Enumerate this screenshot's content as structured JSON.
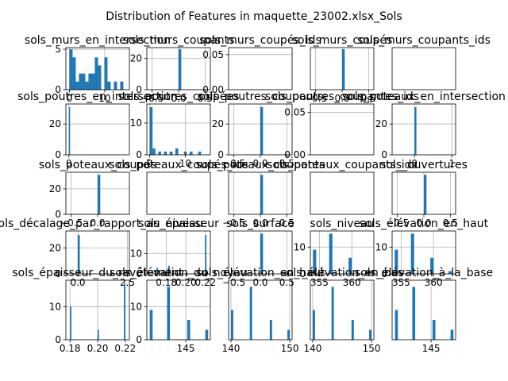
{
  "figure": {
    "suptitle": "Distribution of Features in maquette_23002.xlsx_Sols"
  },
  "chart_data": [
    {
      "type": "bar",
      "title": "sols_murs_en_intersection",
      "xlim": [
        -1,
        17
      ],
      "ylim": [
        0,
        5.2
      ],
      "xticks": [
        {
          "v": 0,
          "label": "0"
        },
        {
          "v": 10,
          "label": "10"
        }
      ],
      "yticks": [
        {
          "v": 0,
          "label": "0"
        },
        {
          "v": 5,
          "label": "5"
        }
      ],
      "bins": [
        {
          "x0": 0,
          "x1": 0.9,
          "y": 5
        },
        {
          "x0": 0.9,
          "x1": 1.8,
          "y": 4
        },
        {
          "x0": 1.8,
          "x1": 2.7,
          "y": 1
        },
        {
          "x0": 2.7,
          "x1": 3.6,
          "y": 2
        },
        {
          "x0": 3.6,
          "x1": 4.5,
          "y": 2
        },
        {
          "x0": 4.5,
          "x1": 5.4,
          "y": 1
        },
        {
          "x0": 5.4,
          "x1": 6.3,
          "y": 2
        },
        {
          "x0": 6.3,
          "x1": 7.2,
          "y": 2
        },
        {
          "x0": 7.2,
          "x1": 8.1,
          "y": 4
        },
        {
          "x0": 8.1,
          "x1": 9.0,
          "y": 3
        },
        {
          "x0": 9.9,
          "x1": 10.8,
          "y": 4
        },
        {
          "x0": 10.8,
          "x1": 11.7,
          "y": 1
        },
        {
          "x0": 12.6,
          "x1": 13.5,
          "y": 1
        },
        {
          "x0": 14.4,
          "x1": 15.3,
          "y": 1
        }
      ]
    },
    {
      "type": "bar",
      "title": "sols_murs_coupants",
      "xlim": [
        -0.6,
        0.6
      ],
      "ylim": [
        0,
        27
      ],
      "xticks": [
        {
          "v": -0.5,
          "label": "−0.5"
        },
        {
          "v": 0,
          "label": "0.0"
        },
        {
          "v": 0.5,
          "label": "0.5"
        }
      ],
      "yticks": [
        {
          "v": 0,
          "label": "0"
        },
        {
          "v": 20,
          "label": "20"
        }
      ],
      "bins": [
        {
          "x0": 0,
          "x1": 0.05,
          "y": 26
        }
      ]
    },
    {
      "type": "bar",
      "title": "sols_murs_coupés_ids",
      "xlim": [
        -0.05,
        1.05
      ],
      "ylim": [
        0,
        0.06
      ],
      "xticks": [],
      "yticks": [
        {
          "v": 0,
          "label": "0.00"
        },
        {
          "v": 0.05,
          "label": "0.05"
        }
      ],
      "bins": []
    },
    {
      "type": "bar",
      "title": "sols_murs_coupés",
      "xlim": [
        -0.6,
        0.6
      ],
      "ylim": [
        0,
        27
      ],
      "xticks": [
        {
          "v": -0.5,
          "label": "−0.5"
        },
        {
          "v": 0,
          "label": "0.0"
        },
        {
          "v": 0.5,
          "label": "0.5"
        }
      ],
      "yticks": [],
      "bins": [
        {
          "x0": 0,
          "x1": 0.05,
          "y": 26
        }
      ]
    },
    {
      "type": "bar",
      "title": "sols_murs_coupants_ids",
      "xlim": [
        -0.05,
        1.05
      ],
      "ylim": [
        0,
        0.06
      ],
      "xticks": [],
      "yticks": [],
      "bins": []
    },
    {
      "type": "bar",
      "title": "sols_poutres_en_intersection",
      "xlim": [
        -0.5,
        10
      ],
      "ylim": [
        0,
        33
      ],
      "xticks": [
        {
          "v": 0,
          "label": "0"
        }
      ],
      "yticks": [
        {
          "v": 0,
          "label": "0"
        },
        {
          "v": 20,
          "label": "20"
        }
      ],
      "bins": [
        {
          "x0": 0,
          "x1": 0.1,
          "y": 31
        }
      ]
    },
    {
      "type": "bar",
      "title": "sols_poutres_coupées",
      "xlim": [
        -0.8,
        17
      ],
      "ylim": [
        0,
        16
      ],
      "xticks": [
        {
          "v": 0,
          "label": "0"
        },
        {
          "v": 10,
          "label": "10"
        }
      ],
      "yticks": [
        {
          "v": 0,
          "label": "0"
        },
        {
          "v": 10,
          "label": "10"
        }
      ],
      "bins": [
        {
          "x0": 0,
          "x1": 0.8,
          "y": 15
        },
        {
          "x0": 0.8,
          "x1": 1.6,
          "y": 2
        },
        {
          "x0": 2.4,
          "x1": 3.2,
          "y": 1
        },
        {
          "x0": 4.0,
          "x1": 4.8,
          "y": 1
        },
        {
          "x0": 5.6,
          "x1": 6.4,
          "y": 1
        },
        {
          "x0": 7.2,
          "x1": 8.0,
          "y": 2
        },
        {
          "x0": 9.6,
          "x1": 10.4,
          "y": 1
        },
        {
          "x0": 11.2,
          "x1": 12.0,
          "y": 1
        },
        {
          "x0": 13.6,
          "x1": 14.4,
          "y": 1
        }
      ]
    },
    {
      "type": "bar",
      "title": "sols_poutres_coupants",
      "xlim": [
        -0.6,
        0.6
      ],
      "ylim": [
        0,
        33
      ],
      "xticks": [
        {
          "v": -0.5,
          "label": "−0.5"
        },
        {
          "v": 0,
          "label": "0.0"
        },
        {
          "v": 0.5,
          "label": "0.5"
        }
      ],
      "yticks": [
        {
          "v": 0,
          "label": "0"
        },
        {
          "v": 20,
          "label": "20"
        }
      ],
      "bins": [
        {
          "x0": 0,
          "x1": 0.05,
          "y": 31
        }
      ]
    },
    {
      "type": "bar",
      "title": "sols_poutres_coupantes_ids",
      "xlim": [
        -0.05,
        1.05
      ],
      "ylim": [
        0,
        0.06
      ],
      "xticks": [],
      "yticks": [
        {
          "v": 0,
          "label": "0.00"
        },
        {
          "v": 0.05,
          "label": "0.05"
        }
      ],
      "bins": []
    },
    {
      "type": "bar",
      "title": "sols_poteaux_en_intersection",
      "xlim": [
        -0.6,
        1.1
      ],
      "ylim": [
        0,
        33
      ],
      "xticks": [
        {
          "v": 0,
          "label": "0"
        },
        {
          "v": 1,
          "label": "1"
        }
      ],
      "yticks": [
        {
          "v": 0,
          "label": "0"
        },
        {
          "v": 20,
          "label": "20"
        }
      ],
      "bins": [
        {
          "x0": 0,
          "x1": 0.05,
          "y": 31
        }
      ]
    },
    {
      "type": "bar",
      "title": "sols_poteaux_coupés",
      "xlim": [
        -0.6,
        0.6
      ],
      "ylim": [
        0,
        33
      ],
      "xticks": [
        {
          "v": -0.5,
          "label": "−0.5"
        },
        {
          "v": 0,
          "label": "0.0"
        }
      ],
      "yticks": [
        {
          "v": 0,
          "label": "0"
        },
        {
          "v": 20,
          "label": "20"
        }
      ],
      "bins": [
        {
          "x0": 0,
          "x1": 0.05,
          "y": 31
        }
      ]
    },
    {
      "type": "bar",
      "title": "sols_poteaux_coupés_ids",
      "xlim": [
        -0.05,
        1.05
      ],
      "ylim": [
        0,
        0.06
      ],
      "xticks": [],
      "yticks": [],
      "bins": []
    },
    {
      "type": "bar",
      "title": "sols_poteaux_coupants",
      "xlim": [
        -0.6,
        0.6
      ],
      "ylim": [
        0,
        33
      ],
      "xticks": [
        {
          "v": -0.5,
          "label": "−0.5"
        },
        {
          "v": 0,
          "label": "0.0"
        },
        {
          "v": 0.5,
          "label": "0.5"
        }
      ],
      "yticks": [],
      "bins": [
        {
          "x0": 0,
          "x1": 0.05,
          "y": 31
        }
      ]
    },
    {
      "type": "bar",
      "title": "sols_poteaux_coupants_ids",
      "xlim": [
        -0.05,
        1.05
      ],
      "ylim": [
        0,
        0.06
      ],
      "xticks": [],
      "yticks": [],
      "bins": []
    },
    {
      "type": "bar",
      "title": "sols_ouvertures",
      "xlim": [
        -0.6,
        0.6
      ],
      "ylim": [
        0,
        33
      ],
      "xticks": [
        {
          "v": -0.5,
          "label": "−0.5"
        },
        {
          "v": 0,
          "label": "0.0"
        },
        {
          "v": 0.5,
          "label": "0.5"
        }
      ],
      "yticks": [],
      "bins": [
        {
          "x0": 0,
          "x1": 0.05,
          "y": 31
        }
      ]
    },
    {
      "type": "bar",
      "title": "sols_décalage_par_rapport_au_niveau",
      "xlim": [
        -0.6,
        2.6
      ],
      "ylim": [
        0,
        33
      ],
      "xticks": [
        {
          "v": 0,
          "label": "0.0"
        },
        {
          "v": 2.5,
          "label": "2.5"
        }
      ],
      "yticks": [
        {
          "v": 0,
          "label": "0"
        },
        {
          "v": 20,
          "label": "20"
        }
      ],
      "bins": [
        {
          "x0": 0,
          "x1": 0.1,
          "y": 30
        },
        {
          "x0": 2.4,
          "x1": 2.5,
          "y": 1
        }
      ]
    },
    {
      "type": "bar",
      "title": "sols_épaisseur",
      "xlim": [
        0.16,
        0.225
      ],
      "ylim": [
        0,
        21
      ],
      "xticks": [
        {
          "v": 0.18,
          "label": "0.18"
        },
        {
          "v": 0.2,
          "label": "0.20"
        },
        {
          "v": 0.22,
          "label": "0.22"
        }
      ],
      "yticks": [
        {
          "v": 0,
          "label": "0"
        },
        {
          "v": 10,
          "label": "10"
        }
      ],
      "bins": [
        {
          "x0": 0.17,
          "x1": 0.1715,
          "y": 3
        },
        {
          "x0": 0.182,
          "x1": 0.1835,
          "y": 4
        },
        {
          "x0": 0.2195,
          "x1": 0.221,
          "y": 19
        }
      ]
    },
    {
      "type": "bar",
      "title": "sols_surface",
      "xlim": [
        -0.6,
        0.6
      ],
      "ylim": [
        0,
        33
      ],
      "xticks": [
        {
          "v": -0.5,
          "label": "−0.5"
        },
        {
          "v": 0,
          "label": "0.0"
        },
        {
          "v": 0.5,
          "label": "0.5"
        }
      ],
      "yticks": [],
      "bins": [
        {
          "x0": 0,
          "x1": 0.05,
          "y": 31
        }
      ]
    },
    {
      "type": "bar",
      "title": "sols_niveau",
      "xlim": [
        353.6,
        363.4
      ],
      "ylim": [
        0,
        16
      ],
      "xticks": [
        {
          "v": 355,
          "label": "355"
        },
        {
          "v": 360,
          "label": "360"
        }
      ],
      "yticks": [
        {
          "v": 0,
          "label": "0"
        },
        {
          "v": 10,
          "label": "10"
        }
      ],
      "bins": [
        {
          "x0": 354,
          "x1": 354.5,
          "y": 9
        },
        {
          "x0": 356.5,
          "x1": 357,
          "y": 15
        },
        {
          "x0": 359.5,
          "x1": 360,
          "y": 6
        },
        {
          "x0": 362.3,
          "x1": 362.8,
          "y": 1
        }
      ]
    },
    {
      "type": "bar",
      "title": "sols_élévation_en_haut",
      "xlim": [
        353.6,
        363.4
      ],
      "ylim": [
        0,
        16
      ],
      "xticks": [
        {
          "v": 355,
          "label": "355"
        },
        {
          "v": 360,
          "label": "360"
        }
      ],
      "yticks": [
        {
          "v": 0,
          "label": "0"
        },
        {
          "v": 10,
          "label": "10"
        }
      ],
      "bins": [
        {
          "x0": 354,
          "x1": 354.5,
          "y": 9
        },
        {
          "x0": 356.5,
          "x1": 357,
          "y": 15
        },
        {
          "x0": 359.5,
          "x1": 360,
          "y": 6
        },
        {
          "x0": 362.3,
          "x1": 362.8,
          "y": 1
        }
      ]
    },
    {
      "type": "bar",
      "title": "sols_épaisseur_du_revêtement",
      "xlim": [
        0.177,
        0.223
      ],
      "ylim": [
        0,
        18
      ],
      "xticks": [
        {
          "v": 0.18,
          "label": "0.18"
        },
        {
          "v": 0.2,
          "label": "0.20"
        },
        {
          "v": 0.22,
          "label": "0.22"
        }
      ],
      "yticks": [
        {
          "v": 0,
          "label": "0"
        },
        {
          "v": 10,
          "label": "10"
        }
      ],
      "bins": [
        {
          "x0": 0.18,
          "x1": 0.181,
          "y": 10
        },
        {
          "x0": 0.2,
          "x1": 0.201,
          "y": 3
        },
        {
          "x0": 0.219,
          "x1": 0.22,
          "y": 17
        }
      ]
    },
    {
      "type": "bar",
      "title": "sols_élévation_du_noyau",
      "xlim": [
        139.6,
        148.4
      ],
      "ylim": [
        0,
        18
      ],
      "xticks": [
        {
          "v": 145,
          "label": "145"
        }
      ],
      "yticks": [
        {
          "v": 0,
          "label": "0"
        },
        {
          "v": 10,
          "label": "10"
        }
      ],
      "bins": [
        {
          "x0": 140,
          "x1": 140.4,
          "y": 9
        },
        {
          "x0": 142.4,
          "x1": 142.8,
          "y": 16
        },
        {
          "x0": 145.2,
          "x1": 145.6,
          "y": 6
        },
        {
          "x0": 147.7,
          "x1": 148.1,
          "y": 3
        }
      ]
    },
    {
      "type": "bar",
      "title": "sols_élévation_en_haut",
      "xlim": [
        139.6,
        150.4
      ],
      "ylim": [
        0,
        18
      ],
      "xticks": [
        {
          "v": 140,
          "label": "140"
        },
        {
          "v": 150,
          "label": "150"
        }
      ],
      "yticks": [],
      "bins": [
        {
          "x0": 140,
          "x1": 140.4,
          "y": 9
        },
        {
          "x0": 143.2,
          "x1": 143.6,
          "y": 16
        },
        {
          "x0": 146.6,
          "x1": 147,
          "y": 6
        },
        {
          "x0": 149.6,
          "x1": 150,
          "y": 3
        }
      ]
    },
    {
      "type": "bar",
      "title": "sols_élévation_en_bas",
      "xlim": [
        139.6,
        150.4
      ],
      "ylim": [
        0,
        18
      ],
      "xticks": [
        {
          "v": 140,
          "label": "140"
        },
        {
          "v": 150,
          "label": "150"
        }
      ],
      "yticks": [],
      "bins": [
        {
          "x0": 140,
          "x1": 140.4,
          "y": 9
        },
        {
          "x0": 143.2,
          "x1": 143.6,
          "y": 16
        },
        {
          "x0": 146.6,
          "x1": 147,
          "y": 6
        },
        {
          "x0": 149.6,
          "x1": 150,
          "y": 3
        }
      ]
    },
    {
      "type": "bar",
      "title": "sols_élévation_à_la_base",
      "xlim": [
        139.6,
        148.4
      ],
      "ylim": [
        0,
        18
      ],
      "xticks": [
        {
          "v": 145,
          "label": "145"
        }
      ],
      "yticks": [],
      "bins": [
        {
          "x0": 140,
          "x1": 140.4,
          "y": 9
        },
        {
          "x0": 142.4,
          "x1": 142.8,
          "y": 16
        },
        {
          "x0": 145.2,
          "x1": 145.6,
          "y": 6
        },
        {
          "x0": 147.7,
          "x1": 148.1,
          "y": 3
        }
      ]
    }
  ],
  "colors": {
    "bar": "#1f77b4",
    "grid": "#b0b0b0",
    "axes": "#000000"
  }
}
